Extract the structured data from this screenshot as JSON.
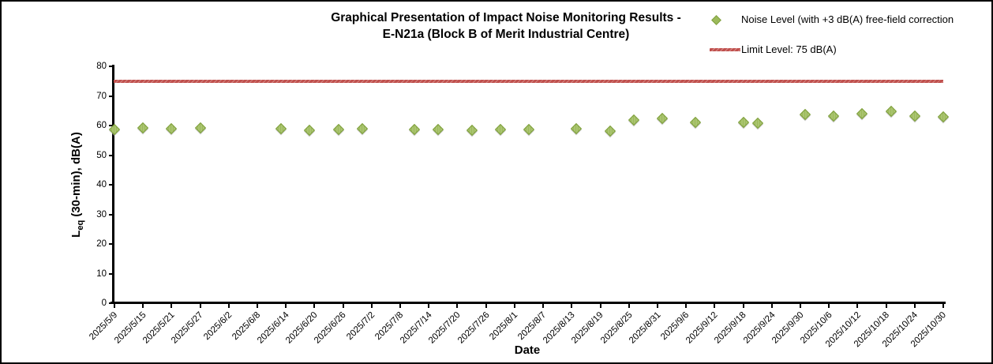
{
  "chart_data": {
    "type": "scatter",
    "title": "Graphical Presentation of Impact Noise Monitoring Results - E-N21a (Block B of Merit Industrial Centre)",
    "title_line1": "Graphical Presentation of Impact Noise Monitoring Results -",
    "title_line2": "E-N21a (Block B of Merit Industrial Centre)",
    "xlabel": "Date",
    "ylabel": {
      "main": "L",
      "sub": "eq",
      "rest": " (30-min), dB(A)"
    },
    "ylabel_text": "Leq (30-min), dB(A)",
    "ylim": [
      0,
      80
    ],
    "y_tick_step": 10,
    "grid": "off",
    "legend_position": "top-right",
    "x_tick_interval_days": 6,
    "x_ticks": [
      "2025/5/9",
      "2025/5/15",
      "2025/5/21",
      "2025/5/27",
      "2025/6/2",
      "2025/6/8",
      "2025/6/14",
      "2025/6/20",
      "2025/6/26",
      "2025/7/2",
      "2025/7/8",
      "2025/7/14",
      "2025/7/20",
      "2025/7/26",
      "2025/8/1",
      "2025/8/7",
      "2025/8/13",
      "2025/8/19",
      "2025/8/25",
      "2025/8/31",
      "2025/9/6",
      "2025/9/12",
      "2025/9/18",
      "2025/9/24",
      "2025/9/30",
      "2025/10/6",
      "2025/10/12",
      "2025/10/18",
      "2025/10/24",
      "2025/10/30"
    ],
    "legend": [
      {
        "label": "Noise Level (with +3 dB(A) free-field correction",
        "marker": "diamond",
        "color": "#9cba5a"
      },
      {
        "label": "Limit Level: 75 dB(A)",
        "marker": "line",
        "color": "#c0504d"
      }
    ],
    "limit_line": {
      "value": 75,
      "color": "#c0504d",
      "label": "Limit Level: 75 dB(A)"
    },
    "series": [
      {
        "name": "Noise Level (with +3 dB(A) free-field correction",
        "marker": "diamond",
        "color": "#9cba5a",
        "points": [
          {
            "date": "2025/5/9",
            "day": 0,
            "value": 58.7
          },
          {
            "date": "2025/5/15",
            "day": 6,
            "value": 59.2
          },
          {
            "date": "2025/5/21",
            "day": 12,
            "value": 59.0
          },
          {
            "date": "2025/5/27",
            "day": 18,
            "value": 59.3
          },
          {
            "date": "2025/6/13",
            "day": 35,
            "value": 58.9
          },
          {
            "date": "2025/6/19",
            "day": 41,
            "value": 58.4
          },
          {
            "date": "2025/6/25",
            "day": 47,
            "value": 58.6
          },
          {
            "date": "2025/6/30",
            "day": 52,
            "value": 58.9
          },
          {
            "date": "2025/7/11",
            "day": 63,
            "value": 58.6
          },
          {
            "date": "2025/7/16",
            "day": 68,
            "value": 58.6
          },
          {
            "date": "2025/7/23",
            "day": 75,
            "value": 58.3
          },
          {
            "date": "2025/7/29",
            "day": 81,
            "value": 58.8
          },
          {
            "date": "2025/8/4",
            "day": 87,
            "value": 58.6
          },
          {
            "date": "2025/8/14",
            "day": 97,
            "value": 58.9
          },
          {
            "date": "2025/8/21",
            "day": 104,
            "value": 58.1
          },
          {
            "date": "2025/8/26",
            "day": 109,
            "value": 61.8
          },
          {
            "date": "2025/9/1",
            "day": 115,
            "value": 62.3
          },
          {
            "date": "2025/9/8",
            "day": 122,
            "value": 61.2
          },
          {
            "date": "2025/9/18",
            "day": 132,
            "value": 61.0
          },
          {
            "date": "2025/9/21",
            "day": 135,
            "value": 60.8
          },
          {
            "date": "2025/10/1",
            "day": 145,
            "value": 63.7
          },
          {
            "date": "2025/10/7",
            "day": 151,
            "value": 63.2
          },
          {
            "date": "2025/10/13",
            "day": 157,
            "value": 64.1
          },
          {
            "date": "2025/10/19",
            "day": 163,
            "value": 64.9
          },
          {
            "date": "2025/10/24",
            "day": 168,
            "value": 63.1
          },
          {
            "date": "2025/10/30",
            "day": 174,
            "value": 62.9
          }
        ]
      }
    ]
  }
}
